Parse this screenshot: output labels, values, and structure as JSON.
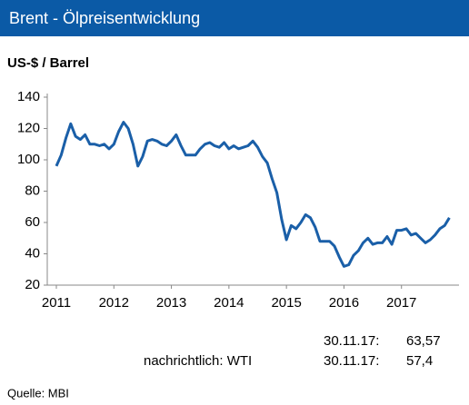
{
  "chart_data": {
    "type": "line",
    "title": "Brent - Ölpreisentwicklung",
    "y_label": "US-$ / Barrel",
    "x": [
      2011.0,
      2011.083,
      2011.167,
      2011.25,
      2011.333,
      2011.417,
      2011.5,
      2011.583,
      2011.667,
      2011.75,
      2011.833,
      2011.917,
      2012.0,
      2012.083,
      2012.167,
      2012.25,
      2012.333,
      2012.417,
      2012.5,
      2012.583,
      2012.667,
      2012.75,
      2012.833,
      2012.917,
      2013.0,
      2013.083,
      2013.167,
      2013.25,
      2013.333,
      2013.417,
      2013.5,
      2013.583,
      2013.667,
      2013.75,
      2013.833,
      2013.917,
      2014.0,
      2014.083,
      2014.167,
      2014.25,
      2014.333,
      2014.417,
      2014.5,
      2014.583,
      2014.667,
      2014.75,
      2014.833,
      2014.917,
      2015.0,
      2015.083,
      2015.167,
      2015.25,
      2015.333,
      2015.417,
      2015.5,
      2015.583,
      2015.667,
      2015.75,
      2015.833,
      2015.917,
      2016.0,
      2016.083,
      2016.167,
      2016.25,
      2016.333,
      2016.417,
      2016.5,
      2016.583,
      2016.667,
      2016.75,
      2016.833,
      2016.917,
      2017.0,
      2017.083,
      2017.167,
      2017.25,
      2017.333,
      2017.417,
      2017.5,
      2017.583,
      2017.667,
      2017.75,
      2017.833
    ],
    "series": [
      {
        "name": "Brent",
        "color": "#1a5fa8",
        "values": [
          96,
          103,
          114,
          123,
          115,
          113,
          116,
          110,
          110,
          109,
          110,
          107,
          110,
          118,
          124,
          120,
          110,
          96,
          102,
          112,
          113,
          112,
          110,
          109,
          112,
          116,
          109,
          103,
          103,
          103,
          107,
          110,
          111,
          109,
          108,
          111,
          107,
          109,
          107,
          108,
          109,
          112,
          108,
          102,
          98,
          88,
          79,
          62,
          49,
          58,
          56,
          60,
          65,
          63,
          57,
          48,
          48,
          48,
          45,
          38,
          32,
          33,
          39,
          42,
          47,
          50,
          46,
          47,
          47,
          51,
          46,
          55,
          55,
          56,
          52,
          53,
          50,
          47,
          49,
          52,
          56,
          58,
          63
        ]
      }
    ],
    "xlim": [
      2011,
      2018
    ],
    "xticks": [
      2011,
      2012,
      2013,
      2014,
      2015,
      2016,
      2017
    ],
    "ylim": [
      20,
      140
    ],
    "yticks": [
      20,
      40,
      60,
      80,
      100,
      120,
      140
    ],
    "grid": false,
    "notes": [
      {
        "label": "",
        "date": "30.11.17:",
        "value": "63,57"
      },
      {
        "label": "nachrichtlich: WTI",
        "date": "30.11.17:",
        "value": "57,4"
      }
    ],
    "source": "Quelle: MBI"
  }
}
